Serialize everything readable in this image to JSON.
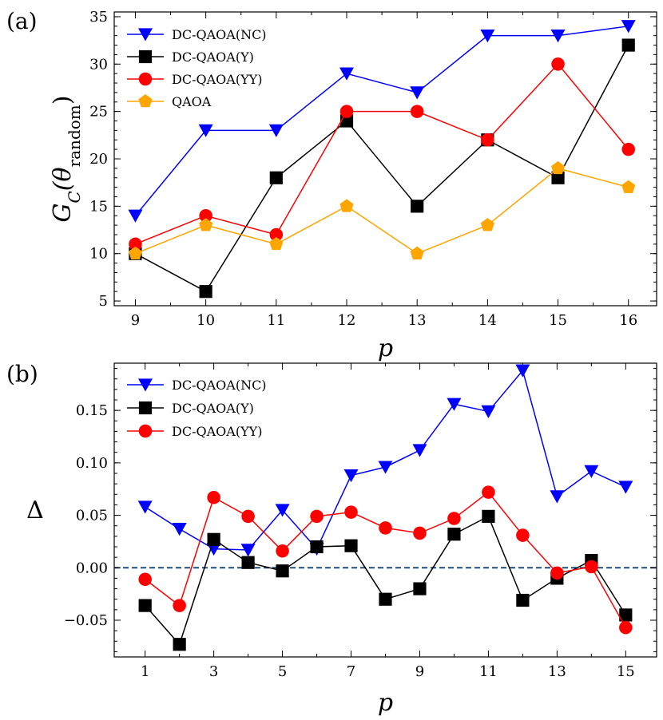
{
  "panel_tags": [
    "(a)",
    "(b)"
  ],
  "chart_data": [
    {
      "type": "line",
      "panel": "(a)",
      "xlabel": "p",
      "ylabel": "G_C(θ_random)",
      "ylabel_main": "G",
      "ylabel_sub": "C",
      "ylabel_arg": "(θ",
      "ylabel_arg_sub": "random",
      "ylabel_close": ")",
      "xlim": [
        8.7,
        16.4
      ],
      "ylim": [
        4.5,
        35.5
      ],
      "xticks": [
        9,
        10,
        11,
        12,
        13,
        14,
        15,
        16
      ],
      "yticks": [
        5,
        10,
        15,
        20,
        25,
        30,
        35
      ],
      "legend_position": "top-left",
      "x": [
        9,
        10,
        11,
        12,
        13,
        14,
        15,
        16
      ],
      "series": [
        {
          "name": "DC-QAOA(NC)",
          "color": "#0000ff",
          "marker": "triangle-down",
          "values": [
            14,
            23,
            23,
            29,
            27,
            33,
            33,
            34
          ]
        },
        {
          "name": "DC-QAOA(Y)",
          "color": "#000000",
          "marker": "square",
          "values": [
            10,
            6,
            18,
            24,
            15,
            22,
            18,
            32
          ]
        },
        {
          "name": "DC-QAOA(YY)",
          "color": "#ff0000",
          "marker": "circle",
          "values": [
            11,
            14,
            12,
            25,
            25,
            22,
            30,
            21
          ]
        },
        {
          "name": "QAOA",
          "color": "#ffa500",
          "marker": "pentagon",
          "values": [
            10,
            13,
            11,
            15,
            10,
            13,
            19,
            17
          ]
        }
      ]
    },
    {
      "type": "line",
      "panel": "(b)",
      "xlabel": "p",
      "ylabel": "Δ",
      "xlim": [
        0.1,
        15.9
      ],
      "ylim": [
        -0.085,
        0.195
      ],
      "xticks": [
        1,
        3,
        5,
        7,
        9,
        11,
        13,
        15
      ],
      "yticks": [
        -0.05,
        0.0,
        0.05,
        0.1,
        0.15
      ],
      "ytick_labels": [
        "−0.05",
        "0.00",
        "0.05",
        "0.10",
        "0.15"
      ],
      "reference_line": {
        "y": 0.0,
        "style": "dashed",
        "color": "#1f4e79"
      },
      "legend_position": "top-left",
      "x": [
        1,
        2,
        3,
        4,
        5,
        6,
        7,
        8,
        9,
        10,
        11,
        12,
        13,
        14,
        15
      ],
      "series": [
        {
          "name": "DC-QAOA(NC)",
          "color": "#0000ff",
          "marker": "triangle-down",
          "values": [
            0.058,
            0.037,
            0.018,
            0.017,
            0.055,
            0.018,
            0.088,
            0.096,
            0.112,
            0.156,
            0.149,
            0.188,
            0.068,
            0.092,
            0.077
          ]
        },
        {
          "name": "DC-QAOA(Y)",
          "color": "#000000",
          "marker": "square",
          "values": [
            -0.036,
            -0.073,
            0.027,
            0.005,
            -0.003,
            0.02,
            0.021,
            -0.03,
            -0.02,
            0.032,
            0.049,
            -0.031,
            -0.01,
            0.007,
            -0.045
          ]
        },
        {
          "name": "DC-QAOA(YY)",
          "color": "#ff0000",
          "marker": "circle",
          "values": [
            -0.011,
            -0.036,
            0.067,
            0.049,
            0.016,
            0.049,
            0.053,
            0.038,
            0.033,
            0.047,
            0.072,
            0.031,
            -0.005,
            0.001,
            -0.057
          ]
        }
      ]
    }
  ]
}
